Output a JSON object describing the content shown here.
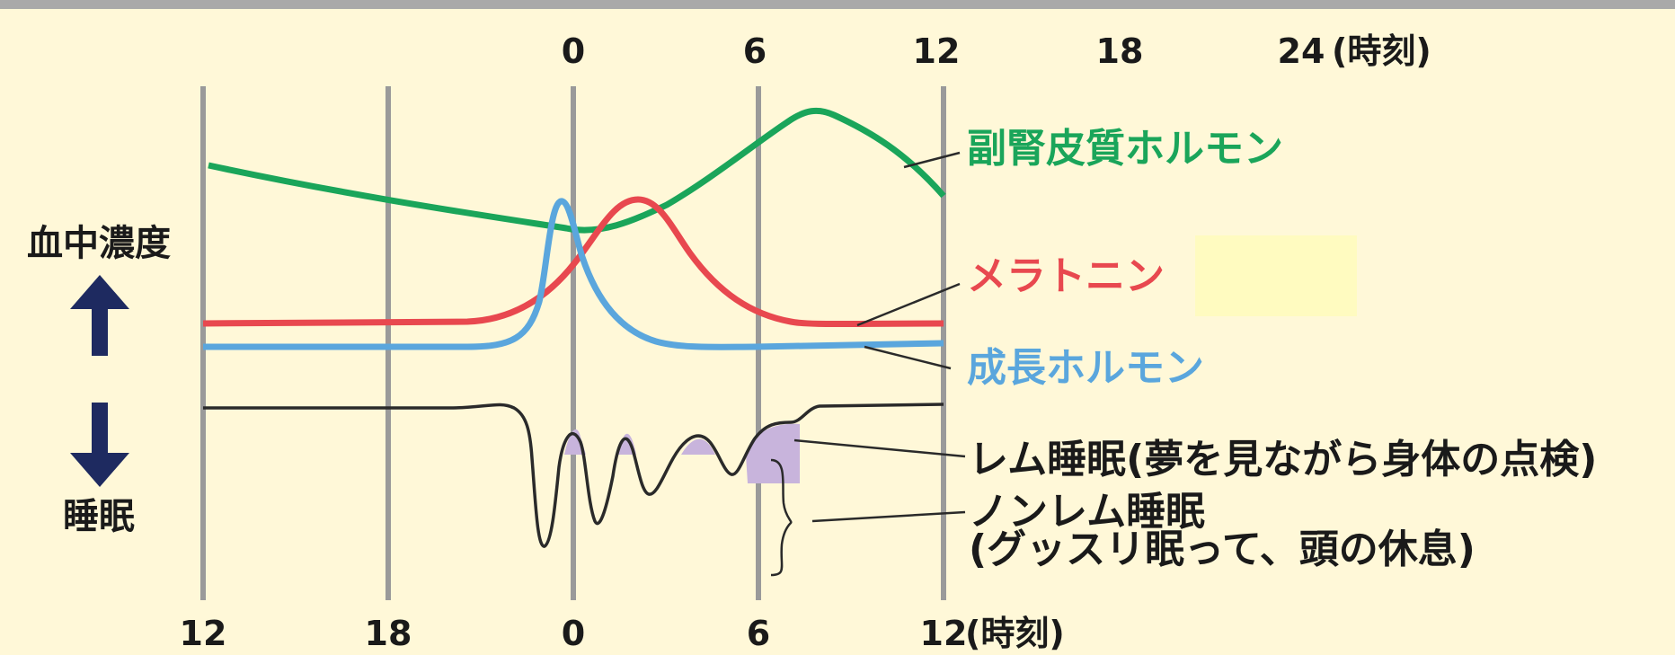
{
  "axis_top": {
    "ticks": [
      "0",
      "6",
      "12",
      "18",
      "24"
    ],
    "unit": "(時刻)"
  },
  "axis_bottom": {
    "ticks": [
      "12",
      "18",
      "0",
      "6",
      "12"
    ],
    "unit": "(時刻)"
  },
  "left_labels": {
    "concentration": "血中濃度",
    "sleep": "睡眠"
  },
  "curves": {
    "cortisol": {
      "label": "副腎皮質ホルモン",
      "color": "#1aa55a"
    },
    "melatonin": {
      "label": "メラトニン",
      "color": "#e8484f"
    },
    "growth_hormone": {
      "label": "成長ホルモン",
      "color": "#5aa6dd"
    }
  },
  "sleep_stages": {
    "rem_label": "レム睡眠(夢を見ながら身体の点検)",
    "nonrem_label_line1": "ノンレム睡眠",
    "nonrem_label_line2": "(グッスリ眠って、頭の休息)",
    "rem_fill_color": "#c8b4dc"
  },
  "colors": {
    "background": "#fff8d8",
    "gridline": "#9a9a9a",
    "arrow": "#1e2a60"
  }
}
